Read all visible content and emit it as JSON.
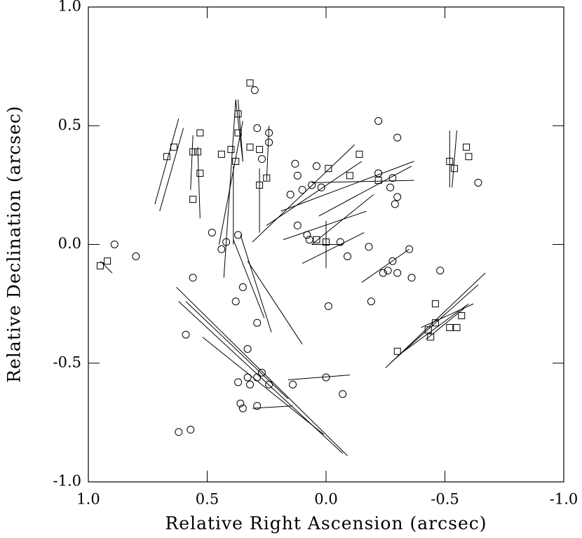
{
  "chart_data": {
    "type": "scatter",
    "xlabel": "Relative Right Ascension (arcsec)",
    "ylabel": "Relative Declination (arcsec)",
    "xlim": [
      1.0,
      -1.0
    ],
    "ylim": [
      -1.0,
      1.0
    ],
    "xticks": [
      {
        "value": 1.0,
        "label": "1.0"
      },
      0.5,
      {
        "value": 0.0,
        "label": "0.0"
      },
      -0.5,
      {
        "value": -1.0,
        "label": "-1.0"
      }
    ],
    "yticks": [
      {
        "value": -1.0,
        "label": "-1.0"
      },
      -0.5,
      {
        "value": 0.0,
        "label": "0.0"
      },
      0.5,
      {
        "value": 1.0,
        "label": "1.0"
      }
    ],
    "color": "#000000",
    "series": [
      {
        "marker": "circle",
        "x": [
          0.3,
          0.29,
          0.24,
          0.24,
          0.27,
          0.13,
          0.04,
          0.12,
          0.15,
          0.1,
          0.06,
          0.02,
          0.12,
          0.08,
          0.07,
          -0.06,
          -0.09,
          -0.18,
          -0.22,
          -0.28,
          -0.3,
          -0.29,
          -0.27,
          -0.3,
          -0.22,
          -0.35,
          -0.28,
          -0.26,
          -0.24,
          -0.3,
          -0.36,
          -0.48,
          -0.19,
          -0.01,
          0.37,
          0.42,
          0.44,
          0.48,
          0.56,
          0.35,
          0.38,
          0.29,
          0.33,
          0.59,
          0.0,
          0.14,
          -0.07,
          0.27,
          0.29,
          0.33,
          0.37,
          0.32,
          0.24,
          0.35,
          0.36,
          0.29,
          0.62,
          0.57,
          0.8,
          0.89,
          -0.64
        ],
        "values": [
          0.65,
          0.49,
          0.47,
          0.43,
          0.36,
          0.34,
          0.33,
          0.29,
          0.21,
          0.23,
          0.25,
          0.24,
          0.08,
          0.04,
          0.02,
          0.01,
          -0.05,
          -0.01,
          0.3,
          0.28,
          0.2,
          0.17,
          0.24,
          0.45,
          0.52,
          -0.02,
          -0.07,
          -0.11,
          -0.12,
          -0.12,
          -0.14,
          -0.11,
          -0.24,
          -0.26,
          0.04,
          0.01,
          -0.02,
          0.05,
          -0.14,
          -0.18,
          -0.24,
          -0.33,
          -0.44,
          -0.38,
          -0.56,
          -0.59,
          -0.63,
          -0.54,
          -0.56,
          -0.56,
          -0.58,
          -0.59,
          -0.59,
          -0.69,
          -0.67,
          -0.68,
          -0.79,
          -0.78,
          -0.05,
          0.0,
          0.26
        ]
      },
      {
        "marker": "square",
        "x": [
          0.64,
          0.67,
          0.56,
          0.54,
          0.53,
          0.56,
          0.44,
          0.4,
          0.37,
          0.38,
          0.32,
          0.28,
          0.25,
          0.28,
          0.32,
          0.37,
          0.53,
          -0.14,
          -0.01,
          -0.1,
          -0.22,
          -0.52,
          -0.54,
          -0.59,
          -0.6,
          0.0,
          0.04,
          -0.46,
          -0.46,
          -0.44,
          -0.52,
          -0.55,
          -0.57,
          -0.3,
          0.95,
          0.92,
          -0.43
        ],
        "values": [
          0.41,
          0.37,
          0.39,
          0.39,
          0.3,
          0.19,
          0.38,
          0.4,
          0.47,
          0.35,
          0.41,
          0.25,
          0.28,
          0.4,
          0.68,
          0.55,
          0.47,
          0.38,
          0.32,
          0.29,
          0.27,
          0.35,
          0.32,
          0.41,
          0.37,
          0.01,
          0.02,
          -0.25,
          -0.33,
          -0.39,
          -0.35,
          -0.35,
          -0.3,
          -0.45,
          -0.09,
          -0.07,
          -0.36
        ]
      }
    ],
    "segments": {
      "x1": [
        0.63,
        0.62,
        0.52,
        0.59,
        -0.25,
        -0.27,
        0.72,
        0.7,
        0.43,
        0.45,
        0.39,
        0.38,
        0.39,
        0.25,
        0.31,
        0.19,
        0.1,
        0.06,
        0.18,
        -0.52,
        -0.55,
        0.25,
        0.28,
        0.0,
        0.06,
        0.54,
        0.56,
        0.37,
        0.95,
        -0.42,
        -0.4,
        0.36,
        0.33,
        0.06,
        -0.3,
        0.03,
        -0.35,
        0.16,
        0.31
      ],
      "y1": [
        -0.18,
        -0.24,
        -0.39,
        -0.24,
        -0.52,
        -0.5,
        0.17,
        0.14,
        -0.14,
        0.0,
        0.33,
        0.61,
        0.02,
        0.08,
        0.01,
        0.14,
        -0.08,
        0.26,
        0.02,
        0.48,
        0.48,
        0.27,
        0.05,
        0.1,
        0.0,
        0.41,
        0.46,
        0.61,
        -0.07,
        -0.4,
        -0.35,
        0.04,
        -0.07,
        0.0,
        -0.47,
        0.12,
        -0.02,
        -0.57,
        -0.69
      ],
      "x2": [
        -0.09,
        -0.07,
        0.01,
        0.16,
        -0.67,
        -0.64,
        0.62,
        0.6,
        0.38,
        0.35,
        0.39,
        0.35,
        0.26,
        -0.15,
        -0.12,
        -0.37,
        -0.16,
        -0.37,
        -0.17,
        -0.52,
        -0.53,
        0.24,
        0.28,
        0.0,
        -0.07,
        0.53,
        0.57,
        0.35,
        0.9,
        -0.58,
        -0.62,
        0.23,
        0.1,
        -0.2,
        -0.6,
        -0.36,
        -0.15,
        -0.1,
        0.14
      ],
      "y2": [
        -0.89,
        -0.88,
        -0.8,
        -0.65,
        -0.12,
        -0.17,
        0.53,
        0.49,
        0.61,
        0.52,
        0.0,
        0.35,
        -0.31,
        0.35,
        0.42,
        0.35,
        0.05,
        0.27,
        0.14,
        0.24,
        0.24,
        0.5,
        0.32,
        -0.1,
        0.0,
        0.11,
        0.23,
        0.35,
        -0.12,
        -0.27,
        -0.25,
        -0.37,
        -0.42,
        0.21,
        -0.25,
        0.33,
        -0.16,
        -0.55,
        -0.68
      ]
    }
  }
}
